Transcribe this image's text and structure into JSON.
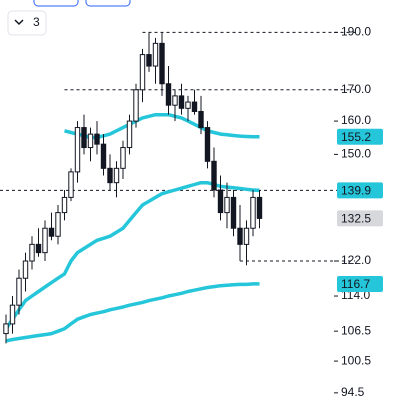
{
  "toolbar": {
    "count": "3"
  },
  "chart_data": {
    "type": "candlestick",
    "log_scale": true,
    "ylim": [
      93.2,
      202.3
    ],
    "yticks": [
      {
        "value": 190,
        "label": "190.0"
      },
      {
        "value": 170,
        "label": "170.0"
      },
      {
        "value": 160,
        "label": "160.0"
      },
      {
        "value": 150,
        "label": "150.0"
      },
      {
        "value": 122,
        "label": "122.0"
      },
      {
        "value": 114,
        "label": "114.0"
      },
      {
        "value": 106.5,
        "label": "106.5"
      },
      {
        "value": 100.5,
        "label": "100.5"
      },
      {
        "value": 94.5,
        "label": "94.5"
      }
    ],
    "up_color": "#ffffff",
    "down_color": "#131722",
    "open": [
      106,
      108,
      112,
      118,
      122,
      126,
      124,
      130,
      128,
      134,
      138,
      145,
      158,
      152,
      156,
      153,
      146,
      142,
      146,
      152,
      160,
      170,
      182,
      178,
      186,
      172,
      165,
      168,
      164,
      166,
      163,
      158,
      148,
      140,
      134,
      138,
      130,
      126,
      130,
      138
    ],
    "high": [
      110,
      114,
      120,
      124,
      128,
      130,
      132,
      134,
      136,
      140,
      146,
      160,
      162,
      158,
      160,
      156,
      150,
      148,
      154,
      162,
      172,
      184,
      190,
      188,
      190,
      178,
      170,
      172,
      168,
      170,
      168,
      160,
      152,
      144,
      142,
      140,
      136,
      132,
      140,
      140
    ],
    "low": [
      104,
      106,
      110,
      115,
      120,
      123,
      122,
      127,
      126,
      132,
      137,
      142,
      150,
      148,
      150,
      144,
      140,
      138,
      143,
      150,
      158,
      166,
      176,
      172,
      168,
      162,
      160,
      162,
      160,
      162,
      156,
      146,
      138,
      132,
      130,
      128,
      122,
      121,
      128,
      130
    ],
    "close": [
      108,
      112,
      118,
      122,
      126,
      124,
      130,
      128,
      134,
      138,
      145,
      158,
      152,
      156,
      153,
      146,
      142,
      146,
      152,
      160,
      170,
      182,
      178,
      186,
      172,
      165,
      168,
      164,
      166,
      163,
      158,
      148,
      140,
      134,
      138,
      130,
      126,
      130,
      138,
      132.5
    ],
    "series": [
      {
        "color": "#26c6da",
        "values": [
          null,
          null,
          null,
          null,
          null,
          null,
          null,
          null,
          null,
          157,
          156.5,
          156,
          155.5,
          155,
          155,
          155.5,
          156,
          157,
          158,
          159,
          160,
          161,
          161.5,
          162,
          162,
          162,
          161.5,
          161,
          160,
          159,
          158,
          157,
          156.5,
          156,
          155.8,
          155.6,
          155.4,
          155.3,
          155.2,
          155.2
        ]
      },
      {
        "color": "#26c6da",
        "values": [
          107,
          109,
          111,
          113,
          114,
          115,
          116,
          117,
          118,
          119,
          122,
          124,
          125,
          126,
          127,
          127.5,
          128,
          129,
          130,
          132,
          134,
          136,
          137,
          138,
          139,
          139.5,
          140,
          140.5,
          141,
          141.5,
          142,
          142,
          141.5,
          141,
          140.8,
          140.6,
          140.4,
          140.2,
          140,
          139.9
        ]
      },
      {
        "color": "#26c6da",
        "values": [
          104.5,
          104.8,
          105,
          105.2,
          105.4,
          105.6,
          105.8,
          106,
          106.5,
          107,
          108,
          109,
          109.5,
          110,
          110.3,
          110.6,
          111,
          111.3,
          111.6,
          112,
          112.3,
          112.6,
          113,
          113.3,
          113.6,
          114,
          114.3,
          114.6,
          115,
          115.3,
          115.6,
          115.9,
          116.1,
          116.3,
          116.4,
          116.5,
          116.6,
          116.6,
          116.7,
          116.7
        ]
      }
    ],
    "levels": [
      {
        "value": 190,
        "from": 21
      },
      {
        "value": 170,
        "from": 9
      },
      {
        "value": 139.9,
        "from": 0
      },
      {
        "value": 122,
        "from": 36
      }
    ],
    "price_markers": [
      {
        "value": 155.2,
        "color": "#26c6da"
      },
      {
        "value": 139.9,
        "color": "#26c6da"
      },
      {
        "value": 132.5,
        "color": "#d6d8dc"
      },
      {
        "value": 116.7,
        "color": "#26c6da"
      }
    ]
  }
}
